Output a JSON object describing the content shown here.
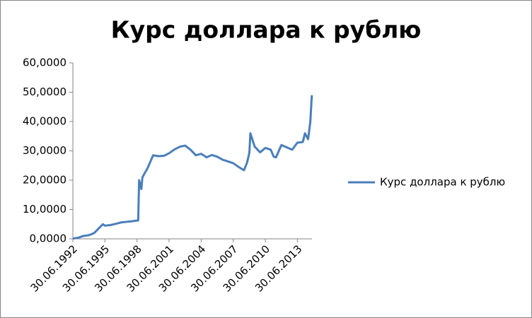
{
  "chart_data": {
    "type": "line",
    "title": "Курс доллара к рублю",
    "x": [
      "30.06.1992",
      "01.01.1993",
      "30.06.1993",
      "01.01.1994",
      "30.06.1994",
      "25.11.1994",
      "20.04.1995",
      "30.06.1995",
      "01.01.1996",
      "30.06.1996",
      "01.01.1997",
      "30.06.1997",
      "01.01.1998",
      "10.08.1998",
      "10.09.1998",
      "25.11.1998",
      "01.01.1999",
      "30.06.1999",
      "01.01.2000",
      "30.06.2000",
      "01.01.2001",
      "30.06.2001",
      "01.01.2002",
      "30.06.2002",
      "01.01.2003",
      "30.06.2003",
      "01.01.2004",
      "30.06.2004",
      "01.01.2005",
      "30.06.2005",
      "01.01.2006",
      "30.06.2006",
      "01.01.2007",
      "30.06.2007",
      "01.01.2008",
      "30.06.2008",
      "15.10.2008",
      "01.01.2009",
      "05.02.2009",
      "30.06.2009",
      "01.01.2010",
      "30.06.2010",
      "01.01.2011",
      "15.04.2011",
      "30.06.2011",
      "01.01.2012",
      "30.06.2012",
      "01.01.2013",
      "30.06.2013",
      "01.01.2014",
      "15.03.2014",
      "30.06.2014",
      "15.09.2014",
      "05.11.2014"
    ],
    "series": [
      {
        "name": "Курс доллара к рублю",
        "color": "#4a7ebb",
        "values": [
          0.13,
          0.4,
          1.0,
          1.25,
          2.0,
          3.5,
          5.0,
          4.5,
          4.7,
          5.1,
          5.6,
          5.8,
          6.0,
          6.3,
          20.0,
          17.0,
          21.0,
          24.2,
          28.5,
          28.2,
          28.3,
          29.2,
          30.5,
          31.4,
          31.8,
          30.4,
          28.5,
          29.0,
          27.8,
          28.6,
          28.0,
          27.0,
          26.4,
          25.8,
          24.5,
          23.4,
          26.0,
          29.4,
          36.0,
          31.5,
          29.5,
          31.0,
          30.4,
          28.0,
          27.8,
          32.0,
          31.2,
          30.4,
          32.8,
          33.0,
          36.0,
          34.0,
          40.0,
          49.0
        ]
      }
    ],
    "xlim": [
      "30.06.1992",
      "10.11.2014"
    ],
    "xticks": [
      "30.06.1992",
      "30.06.1995",
      "30.06.1998",
      "30.06.2001",
      "30.06.2004",
      "30.06.2007",
      "30.06.2010",
      "30.06.2013"
    ],
    "ylim": [
      0,
      60
    ],
    "yticks": [
      {
        "value": 0,
        "label": "0,0000"
      },
      {
        "value": 10,
        "label": "10,0000"
      },
      {
        "value": 20,
        "label": "20,0000"
      },
      {
        "value": 30,
        "label": "30,0000"
      },
      {
        "value": 40,
        "label": "40,0000"
      },
      {
        "value": 50,
        "label": "50,0000"
      },
      {
        "value": 60,
        "label": "60,0000"
      }
    ],
    "grid": false,
    "legend": "right"
  }
}
